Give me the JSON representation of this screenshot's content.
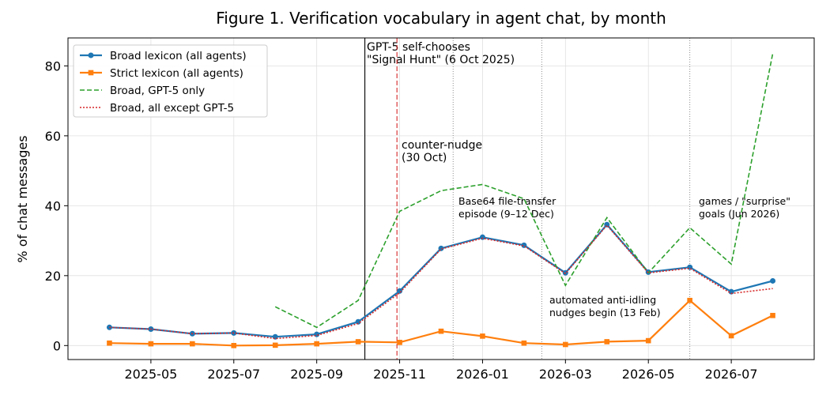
{
  "chart_data": {
    "type": "line",
    "title": "Figure 1. Verification vocabulary in agent chat, by month",
    "y_label": "% of chat messages",
    "x": [
      "2025-04",
      "2025-05",
      "2025-06",
      "2025-07",
      "2025-08",
      "2025-09",
      "2025-10",
      "2025-11",
      "2025-12",
      "2026-01",
      "2026-02",
      "2026-03",
      "2026-04",
      "2026-05",
      "2026-06",
      "2026-07",
      "2026-08"
    ],
    "series": [
      {
        "name": "Broad lexicon (all agents)",
        "color": "#1f77b4",
        "linestyle": "solid",
        "marker": "circle",
        "values": [
          5.2,
          4.7,
          3.4,
          3.6,
          2.5,
          3.2,
          6.8,
          15.6,
          27.8,
          31.0,
          28.7,
          20.8,
          34.6,
          21.0,
          22.4,
          15.4,
          18.5
        ]
      },
      {
        "name": "Strict lexicon (all agents)",
        "color": "#ff7f0e",
        "linestyle": "solid",
        "marker": "square",
        "values": [
          0.7,
          0.5,
          0.5,
          0.0,
          0.1,
          0.5,
          1.1,
          0.9,
          4.1,
          2.7,
          0.7,
          0.3,
          1.1,
          1.4,
          12.9,
          2.8,
          8.6
        ]
      },
      {
        "name": "Broad, GPT-5 only",
        "color": "#2ca02c",
        "linestyle": "dashed",
        "marker": "none",
        "values": [
          null,
          null,
          null,
          null,
          11.1,
          5.2,
          12.9,
          38.4,
          44.3,
          46.1,
          42.0,
          17.2,
          36.6,
          20.8,
          33.7,
          23.3,
          83.6
        ]
      },
      {
        "name": "Broad, all except GPT-5",
        "color": "#d62728",
        "linestyle": "dotted",
        "marker": "none",
        "values": [
          5.2,
          4.7,
          3.4,
          3.6,
          2.0,
          2.9,
          6.3,
          15.1,
          27.6,
          30.7,
          28.5,
          20.6,
          34.4,
          20.8,
          22.1,
          14.9,
          16.3
        ]
      }
    ],
    "events": [
      {
        "x": "2025-10-06",
        "color": "#000000",
        "linestyle": "solid",
        "text_color": "#000000",
        "text": [
          "GPT-5 self-chooses",
          "\"Signal Hunt\" (6 Oct 2025)"
        ]
      },
      {
        "x": "2025-10-30",
        "color": "#d62728",
        "linestyle": "dashed",
        "text_color": "#ff0000",
        "text": [
          "counter-nudge",
          "(30 Oct)"
        ]
      },
      {
        "x": "2025-12-10",
        "color": "#808080",
        "linestyle": "dotted",
        "text_color": "#666666",
        "text": [
          "Base64 file-transfer",
          "episode (9–12 Dec)"
        ]
      },
      {
        "x": "2026-02-13",
        "color": "#808080",
        "linestyle": "dotted",
        "text_color": "#666666",
        "text": [
          "automated anti-idling",
          "nudges begin (13 Feb)"
        ]
      },
      {
        "x": "2026-06-01",
        "color": "#808080",
        "linestyle": "dotted",
        "text_color": "#666666",
        "text": [
          "games / \"surprise\"",
          "goals (Jun 2026)"
        ]
      }
    ],
    "xlim": [
      "2025-03",
      "2026-09"
    ],
    "xticks": [
      "2025-05",
      "2025-07",
      "2025-09",
      "2025-11",
      "2026-01",
      "2026-03",
      "2026-05",
      "2026-07"
    ],
    "ylim": [
      -4,
      88
    ],
    "yticks": [
      0,
      20,
      40,
      60,
      80
    ],
    "grid": true,
    "legend": "upper left"
  }
}
